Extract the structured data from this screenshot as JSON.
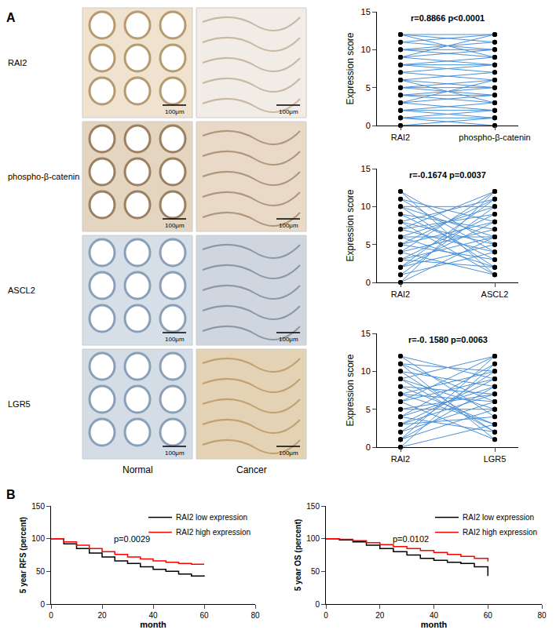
{
  "panel_labels": [
    "A",
    "B"
  ],
  "ihc": {
    "rows": [
      "RAI2",
      "phospho-β-catenin",
      "ASCL2",
      "LGR5"
    ],
    "columns": [
      "Normal",
      "Cancer"
    ],
    "scale_bar": "100μm"
  },
  "chart_data": [
    {
      "type": "slope",
      "categories": [
        "RAI2",
        "phospho-β-catenin"
      ],
      "y_label": "Expression score",
      "annotation": "r=0.8866 p<0.0001",
      "ylim": [
        0,
        15
      ],
      "yticks": [
        0,
        5,
        10,
        15
      ],
      "color": "#4a90d9",
      "marker": "circle",
      "pairs": [
        [
          0,
          0
        ],
        [
          0,
          1
        ],
        [
          1,
          0
        ],
        [
          1,
          2
        ],
        [
          2,
          1
        ],
        [
          2,
          3
        ],
        [
          3,
          2
        ],
        [
          3,
          4
        ],
        [
          4,
          3
        ],
        [
          4,
          5
        ],
        [
          5,
          4
        ],
        [
          5,
          6
        ],
        [
          6,
          5
        ],
        [
          6,
          7
        ],
        [
          7,
          6
        ],
        [
          7,
          8
        ],
        [
          8,
          7
        ],
        [
          8,
          9
        ],
        [
          9,
          8
        ],
        [
          9,
          10
        ],
        [
          10,
          9
        ],
        [
          10,
          11
        ],
        [
          11,
          10
        ],
        [
          11,
          12
        ],
        [
          12,
          11
        ],
        [
          12,
          12
        ],
        [
          3,
          6
        ],
        [
          6,
          3
        ],
        [
          9,
          12
        ],
        [
          12,
          9
        ],
        [
          2,
          2
        ],
        [
          8,
          8
        ],
        [
          5,
          5
        ],
        [
          10,
          10
        ],
        [
          1,
          1
        ],
        [
          4,
          4
        ]
      ]
    },
    {
      "type": "slope",
      "categories": [
        "RAI2",
        "ASCL2"
      ],
      "y_label": "Expression score",
      "annotation": "r=-0.1674 p=0.0037",
      "ylim": [
        0,
        15
      ],
      "yticks": [
        0,
        5,
        10,
        15
      ],
      "color": "#4a90d9",
      "marker": "circle",
      "pairs": [
        [
          0,
          12
        ],
        [
          0,
          6
        ],
        [
          1,
          10
        ],
        [
          1,
          4
        ],
        [
          2,
          8
        ],
        [
          2,
          11
        ],
        [
          3,
          9
        ],
        [
          3,
          2
        ],
        [
          4,
          7
        ],
        [
          4,
          12
        ],
        [
          5,
          3
        ],
        [
          5,
          8
        ],
        [
          6,
          6
        ],
        [
          6,
          10
        ],
        [
          7,
          4
        ],
        [
          7,
          9
        ],
        [
          8,
          5
        ],
        [
          8,
          1
        ],
        [
          9,
          3
        ],
        [
          9,
          7
        ],
        [
          10,
          2
        ],
        [
          10,
          6
        ],
        [
          11,
          4
        ],
        [
          11,
          8
        ],
        [
          12,
          1
        ],
        [
          12,
          5
        ],
        [
          2,
          5
        ],
        [
          6,
          2
        ],
        [
          8,
          11
        ],
        [
          4,
          1
        ],
        [
          10,
          10
        ],
        [
          3,
          6
        ],
        [
          7,
          12
        ],
        [
          5,
          11
        ]
      ]
    },
    {
      "type": "slope",
      "categories": [
        "RAI2",
        "LGR5"
      ],
      "y_label": "Expression score",
      "annotation": "r=-0. 1580 p=0.0063",
      "ylim": [
        0,
        15
      ],
      "yticks": [
        0,
        5,
        10,
        15
      ],
      "color": "#4a90d9",
      "marker": "circle",
      "pairs": [
        [
          0,
          11
        ],
        [
          0,
          3
        ],
        [
          1,
          8
        ],
        [
          1,
          12
        ],
        [
          2,
          6
        ],
        [
          2,
          10
        ],
        [
          3,
          4
        ],
        [
          3,
          9
        ],
        [
          4,
          2
        ],
        [
          4,
          11
        ],
        [
          5,
          7
        ],
        [
          5,
          5
        ],
        [
          6,
          9
        ],
        [
          6,
          1
        ],
        [
          7,
          6
        ],
        [
          7,
          10
        ],
        [
          8,
          3
        ],
        [
          8,
          7
        ],
        [
          9,
          5
        ],
        [
          9,
          12
        ],
        [
          10,
          2
        ],
        [
          10,
          8
        ],
        [
          11,
          6
        ],
        [
          11,
          1
        ],
        [
          12,
          4
        ],
        [
          12,
          9
        ],
        [
          3,
          7
        ],
        [
          6,
          12
        ],
        [
          9,
          2
        ],
        [
          1,
          5
        ],
        [
          7,
          3
        ],
        [
          11,
          10
        ],
        [
          4,
          8
        ]
      ]
    },
    {
      "type": "line",
      "x_label": "month",
      "y_label": "5 year RFS (percent)",
      "annotation": "p=0.0029",
      "xlim": [
        0,
        80
      ],
      "xticks": [
        0,
        20,
        40,
        60,
        80
      ],
      "ylim": [
        0,
        150
      ],
      "yticks": [
        0,
        50,
        100,
        150
      ],
      "legend": "upper right",
      "line_style": "step",
      "series": [
        {
          "name": "RAI2 low expression",
          "color": "#000000",
          "x": [
            0,
            5,
            10,
            15,
            20,
            25,
            30,
            35,
            40,
            45,
            50,
            55,
            60
          ],
          "values": [
            100,
            92,
            85,
            78,
            72,
            66,
            62,
            57,
            53,
            50,
            46,
            43,
            42
          ]
        },
        {
          "name": "RAI2 high expression",
          "color": "#ff0000",
          "x": [
            0,
            5,
            10,
            15,
            20,
            25,
            30,
            35,
            40,
            45,
            50,
            55,
            60
          ],
          "values": [
            100,
            95,
            90,
            85,
            80,
            76,
            72,
            69,
            66,
            64,
            62,
            61,
            61
          ]
        }
      ]
    },
    {
      "type": "line",
      "x_label": "month",
      "y_label": "5 year OS (percent)",
      "annotation": "p=0.0102",
      "xlim": [
        0,
        80
      ],
      "xticks": [
        0,
        20,
        40,
        60,
        80
      ],
      "ylim": [
        0,
        150
      ],
      "yticks": [
        0,
        50,
        100,
        150
      ],
      "legend": "upper right",
      "line_style": "step",
      "series": [
        {
          "name": "RAI2 low expression",
          "color": "#000000",
          "x": [
            0,
            5,
            10,
            15,
            20,
            25,
            30,
            35,
            40,
            45,
            50,
            55,
            60
          ],
          "values": [
            100,
            98,
            95,
            90,
            85,
            80,
            75,
            70,
            67,
            64,
            62,
            57,
            43
          ]
        },
        {
          "name": "RAI2 high expression",
          "color": "#ff0000",
          "x": [
            0,
            5,
            10,
            15,
            20,
            25,
            30,
            35,
            40,
            45,
            50,
            55,
            60
          ],
          "values": [
            100,
            99,
            97,
            94,
            91,
            88,
            85,
            82,
            79,
            76,
            73,
            70,
            65
          ]
        }
      ]
    }
  ]
}
